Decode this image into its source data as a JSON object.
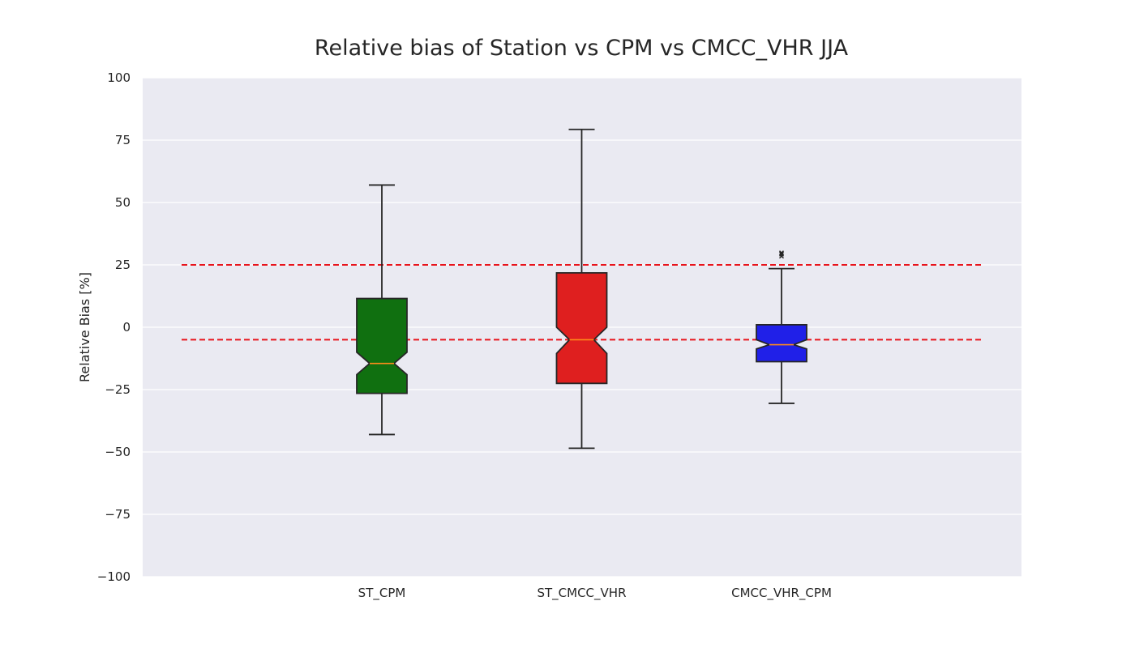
{
  "chart_data": {
    "type": "boxplot",
    "title": "Relative bias of Station vs CPM vs CMCC_VHR JJA",
    "xlabel": "",
    "ylabel": "Relative Bias [%]",
    "ylim": [
      -100,
      100
    ],
    "yticks": [
      100,
      75,
      50,
      25,
      0,
      -25,
      -50,
      -75,
      -100
    ],
    "ytick_labels": [
      "100",
      "75",
      "50",
      "25",
      "0",
      "−25",
      "−50",
      "−75",
      "−100"
    ],
    "grid": true,
    "categories": [
      "ST_CPM",
      "ST_CMCC_VHR",
      "CMCC_VHR_CPM"
    ],
    "boxes": [
      {
        "label": "ST_CPM",
        "whisker_low": -43,
        "q1": -26.5,
        "notch_low": -19,
        "median": -14.5,
        "notch_high": -10,
        "q3": 11.5,
        "whisker_high": 57,
        "outliers": [],
        "color": "#107010"
      },
      {
        "label": "ST_CMCC_VHR",
        "whisker_low": -48.5,
        "q1": -22.5,
        "notch_low": -10.5,
        "median": -5,
        "notch_high": 0,
        "q3": 21.8,
        "whisker_high": 79.3,
        "outliers": [],
        "color": "#df1f1f"
      },
      {
        "label": "CMCC_VHR_CPM",
        "whisker_low": -30.5,
        "q1": -13.8,
        "notch_low": -8.7,
        "median": -7,
        "notch_high": -5,
        "q3": 1,
        "whisker_high": 23.5,
        "outliers": [
          28.5,
          29.3,
          29.8
        ],
        "color": "#2020e8"
      }
    ],
    "reference_lines": [
      25,
      -5
    ],
    "colors": {
      "background": "#eaeaf2",
      "grid": "#ffffff",
      "reference_line": "#e8141c",
      "median": "#ff8c1a",
      "box_edge": "#262626"
    }
  }
}
